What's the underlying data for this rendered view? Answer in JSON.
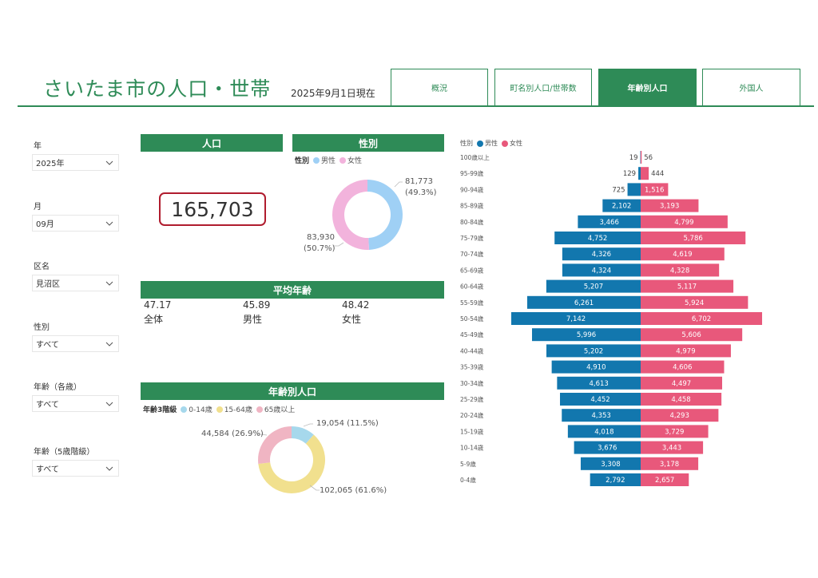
{
  "header": {
    "title": "さいたま市の人口・世帯",
    "date": "2025年9月1日現在",
    "tabs": [
      {
        "label": "概況",
        "active": false
      },
      {
        "label": "町名別人口/世帯数",
        "active": false
      },
      {
        "label": "年齢別人口",
        "active": true
      },
      {
        "label": "外国人",
        "active": false
      }
    ]
  },
  "filters": [
    {
      "label": "年",
      "value": "2025年"
    },
    {
      "label": "月",
      "value": "09月"
    },
    {
      "label": "区名",
      "value": "見沼区"
    },
    {
      "label": "性別",
      "value": "すべて"
    },
    {
      "label": "年齢（各歳）",
      "value": "すべて"
    },
    {
      "label": "年齢（5歳階級）",
      "value": "すべて"
    }
  ],
  "population": {
    "title": "人口",
    "value": "165,703"
  },
  "gender": {
    "title": "性別",
    "legend_title": "性別",
    "male_label": "男性",
    "female_label": "女性",
    "male_value": "81,773",
    "male_pct": "(49.3%)",
    "female_value": "83,930",
    "female_pct": "(50.7%)",
    "male_share": 49.3,
    "female_share": 50.7
  },
  "avg_age": {
    "title": "平均年齢",
    "items": [
      {
        "value": "47.17",
        "label": "全体"
      },
      {
        "value": "45.89",
        "label": "男性"
      },
      {
        "value": "48.42",
        "label": "女性"
      }
    ]
  },
  "age_groups": {
    "title": "年齢別人口",
    "legend_title": "年齢3階級",
    "labels": [
      "0-14歳",
      "15-64歳",
      "65歳以上"
    ],
    "texts": [
      "19,054 (11.5%)",
      "102,065 (61.6%)",
      "44,584 (26.9%)"
    ],
    "shares": [
      11.5,
      61.6,
      26.9
    ]
  },
  "colors": {
    "brand": "#2e8b57",
    "male_light": "#9fd0f5",
    "female_light": "#f2b3dc",
    "age_0_14": "#a6d8ec",
    "age_15_64": "#f1e08e",
    "age_65": "#f0b5c3",
    "pyramid_male": "#1277ae",
    "pyramid_female": "#e8587b",
    "kpi_border": "#b01c2e"
  },
  "chart_data": {
    "type": "bar",
    "legend_title": "性別",
    "legend_position": "top-left",
    "categories": [
      "100歳以上",
      "95-99歳",
      "90-94歳",
      "85-89歳",
      "80-84歳",
      "75-79歳",
      "70-74歳",
      "65-69歳",
      "60-64歳",
      "55-59歳",
      "50-54歳",
      "45-49歳",
      "40-44歳",
      "35-39歳",
      "30-34歳",
      "25-29歳",
      "20-24歳",
      "15-19歳",
      "10-14歳",
      "5-9歳",
      "0-4歳"
    ],
    "series": [
      {
        "name": "男性",
        "values": [
          19,
          129,
          725,
          2102,
          3466,
          4752,
          4326,
          4324,
          5207,
          6261,
          7142,
          5996,
          5202,
          4910,
          4613,
          4452,
          4353,
          4018,
          3676,
          3308,
          2792
        ],
        "labels": [
          "19",
          "129",
          "725",
          "2,102",
          "3,466",
          "4,752",
          "4,326",
          "4,324",
          "5,207",
          "6,261",
          "7,142",
          "5,996",
          "5,202",
          "4,910",
          "4,613",
          "4,452",
          "4,353",
          "4,018",
          "3,676",
          "3,308",
          "2,792"
        ]
      },
      {
        "name": "女性",
        "values": [
          56,
          444,
          1516,
          3193,
          4799,
          5786,
          4619,
          4328,
          5117,
          5924,
          6702,
          5606,
          4979,
          4606,
          4497,
          4458,
          4293,
          3729,
          3443,
          3178,
          2657
        ],
        "labels": [
          "56",
          "444",
          "1,516",
          "3,193",
          "4,799",
          "5,786",
          "4,619",
          "4,328",
          "5,117",
          "5,924",
          "6,702",
          "5,606",
          "4,979",
          "4,606",
          "4,497",
          "4,458",
          "4,293",
          "3,729",
          "3,443",
          "3,178",
          "2,657"
        ]
      }
    ]
  }
}
